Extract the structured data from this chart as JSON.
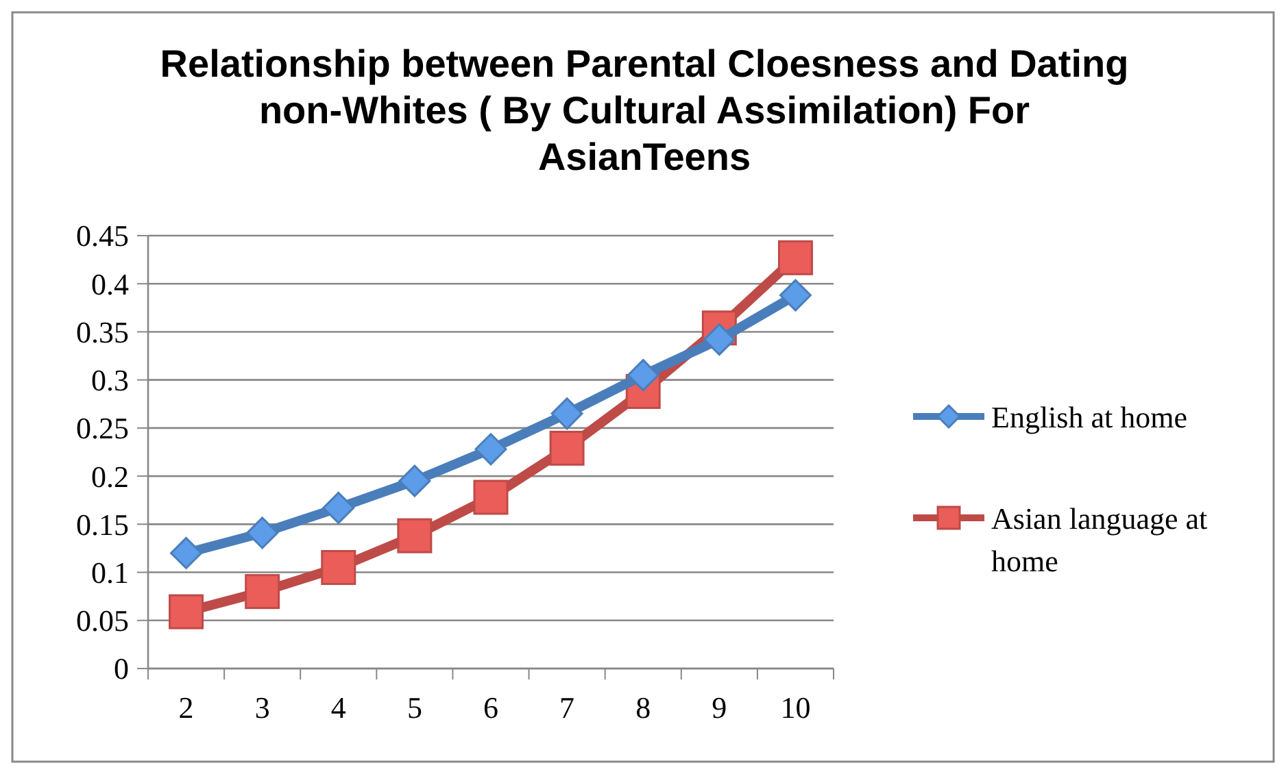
{
  "chart_data": {
    "type": "line",
    "title": "Relationship between Parental Cloesness and Dating non-Whites ( By Cultural Assimilation) For AsianTeens",
    "categories": [
      "2",
      "3",
      "4",
      "5",
      "6",
      "7",
      "8",
      "9",
      "10"
    ],
    "series": [
      {
        "name": "English at home",
        "color": "#4a7ebb",
        "marker": "diamond",
        "values": [
          0.12,
          0.141,
          0.167,
          0.195,
          0.228,
          0.265,
          0.305,
          0.342,
          0.388
        ]
      },
      {
        "name": "Asian language at home",
        "color": "#be4b48",
        "marker": "square",
        "values": [
          0.059,
          0.08,
          0.105,
          0.138,
          0.178,
          0.229,
          0.288,
          0.354,
          0.427
        ]
      }
    ],
    "ylim": [
      0,
      0.45
    ],
    "yticks": [
      0,
      0.05,
      0.1,
      0.15,
      0.2,
      0.25,
      0.3,
      0.35,
      0.4,
      0.45
    ],
    "grid": "y",
    "legend": "right",
    "line_style": "solid"
  }
}
